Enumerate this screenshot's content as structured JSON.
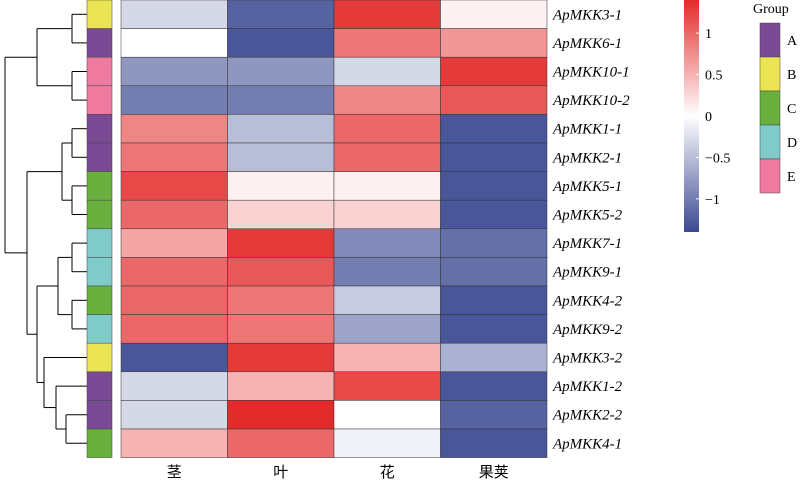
{
  "chart_data": {
    "type": "heatmap",
    "rows": [
      "ApMKK3-1",
      "ApMKK6-1",
      "ApMKK10-1",
      "ApMKK10-2",
      "ApMKK1-1",
      "ApMKK2-1",
      "ApMKK5-1",
      "ApMKK5-2",
      "ApMKK7-1",
      "ApMKK9-1",
      "ApMKK4-2",
      "ApMKK9-2",
      "ApMKK3-2",
      "ApMKK1-2",
      "ApMKK2-2",
      "ApMKK4-1"
    ],
    "columns": [
      "茎",
      "叶",
      "花",
      "果荚"
    ],
    "values": [
      [
        -0.3,
        -1.2,
        1.3,
        0.1
      ],
      [
        0.0,
        -1.3,
        0.9,
        0.7
      ],
      [
        -0.8,
        -0.8,
        -0.3,
        1.3
      ],
      [
        -1.0,
        -1.0,
        0.8,
        1.1
      ],
      [
        0.8,
        -0.5,
        1.0,
        -1.3
      ],
      [
        0.9,
        -0.5,
        1.0,
        -1.3
      ],
      [
        1.2,
        0.1,
        0.1,
        -1.3
      ],
      [
        1.0,
        0.3,
        0.3,
        -1.3
      ],
      [
        0.6,
        1.3,
        -0.9,
        -1.1
      ],
      [
        1.0,
        1.1,
        -1.0,
        -1.1
      ],
      [
        1.0,
        0.9,
        -0.4,
        -1.3
      ],
      [
        1.0,
        0.9,
        -0.7,
        -1.3
      ],
      [
        -1.3,
        1.3,
        0.5,
        -0.6
      ],
      [
        -0.3,
        0.5,
        1.2,
        -1.3
      ],
      [
        -0.3,
        1.4,
        0.0,
        -1.2
      ],
      [
        0.5,
        1.0,
        -0.1,
        -1.3
      ]
    ],
    "groups": [
      "B",
      "A",
      "E",
      "E",
      "A",
      "A",
      "C",
      "C",
      "D",
      "D",
      "C",
      "D",
      "B",
      "A",
      "A",
      "C"
    ],
    "colorbar": {
      "ticks": [
        1,
        0.5,
        0,
        -0.5,
        -1
      ],
      "tick_labels": [
        "1",
        "0.5",
        "0",
        "−0.5",
        "−1"
      ],
      "range": [
        -1.4,
        1.4
      ]
    },
    "colors": {
      "low": "#3b4991",
      "mid": "#ffffff",
      "high": "#e32b2b"
    },
    "legend": {
      "title": "Group",
      "items": [
        {
          "label": "A",
          "color": "#7a4b94"
        },
        {
          "label": "B",
          "color": "#ece553"
        },
        {
          "label": "C",
          "color": "#6ab03f"
        },
        {
          "label": "D",
          "color": "#7ecbca"
        },
        {
          "label": "E",
          "color": "#ef7aa0"
        }
      ]
    }
  }
}
